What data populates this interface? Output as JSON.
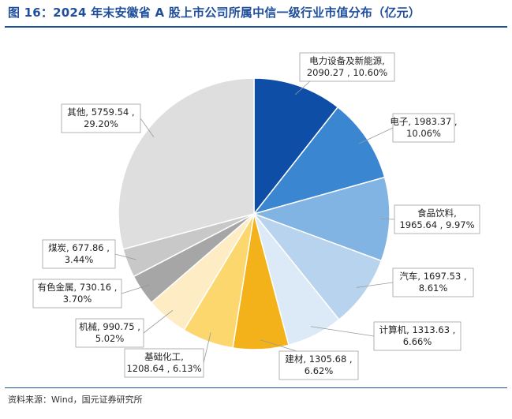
{
  "title": "图 16：2024 年末安徽省 A 股上市公司所属中信一级行业市值分布（亿元）",
  "source": "资料来源：Wind，国元证券研究所",
  "chart_data": {
    "type": "pie",
    "title": "图 16：2024 年末安徽省 A 股上市公司所属中信一级行业市值分布（亿元）",
    "unit": "亿元",
    "slices": [
      {
        "name": "电力设备及新能源",
        "value": 2090.27,
        "percent": "10.60%",
        "label_lines": [
          "电力设备及新能源,",
          "2090.27 , 10.60%"
        ],
        "color": "#0f4ea6"
      },
      {
        "name": "电子",
        "value": 1983.37,
        "percent": "10.06%",
        "label_lines": [
          "电子, 1983.37 ,",
          "10.06%"
        ],
        "color": "#3a86d1"
      },
      {
        "name": "食品饮料",
        "value": 1965.64,
        "percent": "9.97%",
        "label_lines": [
          "食品饮料,",
          "1965.64 , 9.97%"
        ],
        "color": "#82b4e3"
      },
      {
        "name": "汽车",
        "value": 1697.53,
        "percent": "8.61%",
        "label_lines": [
          "汽车, 1697.53 ,",
          "8.61%"
        ],
        "color": "#b8d3ee"
      },
      {
        "name": "计算机",
        "value": 1313.63,
        "percent": "6.66%",
        "label_lines": [
          "计算机, 1313.63 ,",
          "6.66%"
        ],
        "color": "#dce9f6"
      },
      {
        "name": "建材",
        "value": 1305.68,
        "percent": "6.62%",
        "label_lines": [
          "建材, 1305.68 ,",
          "6.62%"
        ],
        "color": "#f4b21a"
      },
      {
        "name": "基础化工",
        "value": 1208.64,
        "percent": "6.13%",
        "label_lines": [
          "基础化工,",
          "1208.64 , 6.13%"
        ],
        "color": "#fbd76e"
      },
      {
        "name": "机械",
        "value": 990.75,
        "percent": "5.02%",
        "label_lines": [
          "机械, 990.75 ,",
          "5.02%"
        ],
        "color": "#fdecc4"
      },
      {
        "name": "有色金属",
        "value": 730.16,
        "percent": "3.70%",
        "label_lines": [
          "有色金属, 730.16 ,",
          "3.70%"
        ],
        "color": "#a6a6a6"
      },
      {
        "name": "煤炭",
        "value": 677.86,
        "percent": "3.44%",
        "label_lines": [
          "煤炭, 677.86 ,",
          "3.44%"
        ],
        "color": "#c8c8c8"
      },
      {
        "name": "其他",
        "value": 5759.54,
        "percent": "29.20%",
        "label_lines": [
          "其他, 5759.54 ,",
          "29.20%"
        ],
        "color": "#dedede"
      }
    ]
  }
}
